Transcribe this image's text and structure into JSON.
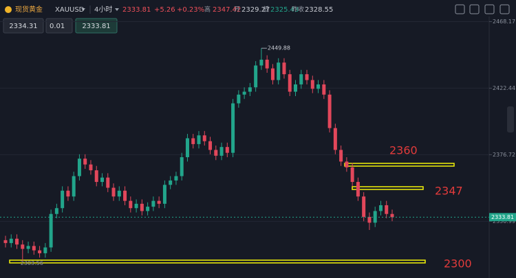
{
  "header": {
    "symbol": "现货黄金",
    "code": "XAUUSD",
    "interval": "4小时",
    "price": "2333.81",
    "change": "+5.26",
    "change_pct": "+0.23%",
    "high_label": "高",
    "high": "2347.42",
    "open_label": "开",
    "open": "2329.27",
    "low_label": "低",
    "low": "2325.43",
    "prev_close_label": "昨收",
    "prev_close": "2328.55"
  },
  "order_panel": {
    "sell": "2334.31",
    "lots": "0.01",
    "buy": "2333.81"
  },
  "chart_data": {
    "type": "candlestick",
    "up_color": "#22a58b",
    "down_color": "#e2475b",
    "ylim": [
      2292,
      2483
    ],
    "yticks": [
      2468.17,
      2422.44,
      2376.72,
      2330.99
    ],
    "grid": true,
    "open": [
      2318,
      2316,
      2319,
      2315,
      2312,
      2314,
      2311,
      2309,
      2313,
      2336,
      2340,
      2352,
      2348,
      2362,
      2374,
      2370,
      2366,
      2358,
      2361,
      2354,
      2348,
      2352,
      2345,
      2340,
      2343,
      2338,
      2341,
      2345,
      2343,
      2356,
      2359,
      2362,
      2375,
      2388,
      2384,
      2390,
      2386,
      2380,
      2376,
      2382,
      2378,
      2412,
      2418,
      2420,
      2423,
      2438,
      2442,
      2436,
      2428,
      2440,
      2432,
      2420,
      2425,
      2432,
      2428,
      2422,
      2425,
      2418,
      2395,
      2380,
      2372,
      2368,
      2358,
      2348,
      2334,
      2330,
      2338,
      2342,
      2336
    ],
    "high": [
      2321,
      2322,
      2322,
      2318,
      2317,
      2317,
      2314,
      2316,
      2339,
      2343,
      2355,
      2355,
      2365,
      2377,
      2377,
      2373,
      2369,
      2364,
      2364,
      2357,
      2355,
      2355,
      2348,
      2346,
      2346,
      2344,
      2348,
      2348,
      2359,
      2362,
      2365,
      2378,
      2391,
      2391,
      2393,
      2393,
      2389,
      2383,
      2385,
      2385,
      2415,
      2421,
      2423,
      2426,
      2441,
      2449.88,
      2445,
      2439,
      2443,
      2443,
      2435,
      2428,
      2435,
      2435,
      2431,
      2428,
      2428,
      2421,
      2398,
      2383,
      2375,
      2371,
      2361,
      2351,
      2337,
      2341,
      2345,
      2345,
      2339
    ],
    "low": [
      2313,
      2313,
      2312,
      2303.56,
      2309,
      2308,
      2306,
      2306,
      2310,
      2333,
      2337,
      2345,
      2345,
      2359,
      2367,
      2363,
      2355,
      2355,
      2351,
      2345,
      2345,
      2342,
      2337,
      2337,
      2335,
      2335,
      2338,
      2340,
      2340,
      2353,
      2356,
      2359,
      2372,
      2381,
      2381,
      2383,
      2377,
      2373,
      2373,
      2375,
      2375,
      2409,
      2415,
      2417,
      2420,
      2435,
      2433,
      2425,
      2425,
      2429,
      2417,
      2417,
      2422,
      2425,
      2419,
      2419,
      2415,
      2392,
      2377,
      2369,
      2365,
      2355,
      2345,
      2331,
      2325,
      2327,
      2335,
      2333,
      2331
    ],
    "close": [
      2316,
      2319,
      2315,
      2312,
      2314,
      2311,
      2309,
      2313,
      2336,
      2340,
      2352,
      2348,
      2362,
      2374,
      2370,
      2366,
      2358,
      2361,
      2354,
      2348,
      2352,
      2345,
      2340,
      2343,
      2338,
      2341,
      2345,
      2343,
      2356,
      2359,
      2362,
      2375,
      2388,
      2384,
      2390,
      2386,
      2380,
      2376,
      2382,
      2378,
      2412,
      2418,
      2420,
      2423,
      2438,
      2442,
      2436,
      2428,
      2440,
      2432,
      2420,
      2425,
      2432,
      2428,
      2422,
      2425,
      2418,
      2395,
      2380,
      2372,
      2368,
      2358,
      2348,
      2334,
      2330,
      2338,
      2342,
      2336,
      2333.81
    ],
    "annotations": [
      "2360",
      "2347",
      "2300"
    ]
  }
}
